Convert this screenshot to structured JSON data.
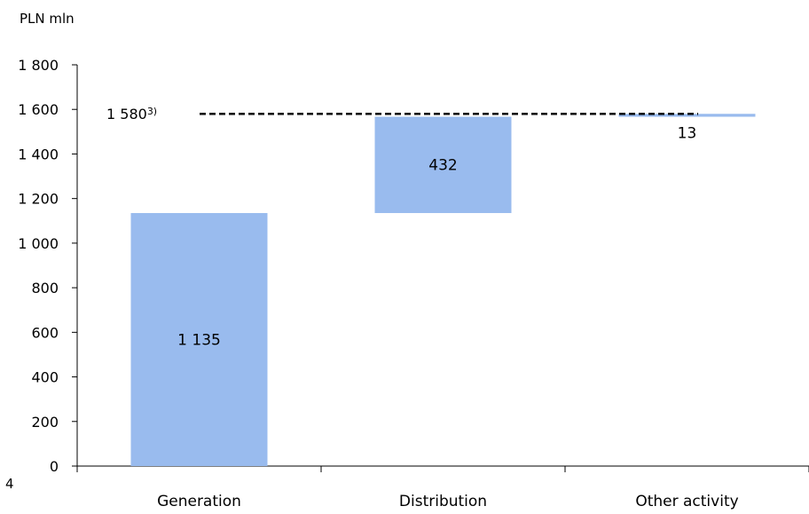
{
  "chart_data": {
    "type": "bar",
    "subtype": "waterfall",
    "unit_label": "PLN mln",
    "categories": [
      "Generation",
      "Distribution",
      "Other activity"
    ],
    "values": [
      1135,
      432,
      13
    ],
    "data_labels": [
      "1 135",
      "432",
      "13"
    ],
    "bar_color": "#99BBEE",
    "ylim": [
      0,
      1800
    ],
    "yticks": [
      0,
      200,
      400,
      600,
      800,
      1000,
      1200,
      1400,
      1600,
      1800
    ],
    "ytick_labels": [
      "0",
      "200",
      "400",
      "600",
      "800",
      "1 000",
      "1 200",
      "1 400",
      "1 600",
      "1 800"
    ],
    "total": {
      "value": 1580,
      "label": "1 580",
      "footnote": "3)",
      "line_style": "dashed"
    },
    "corner_fragment": "4",
    "grid": false,
    "legend": "none"
  }
}
